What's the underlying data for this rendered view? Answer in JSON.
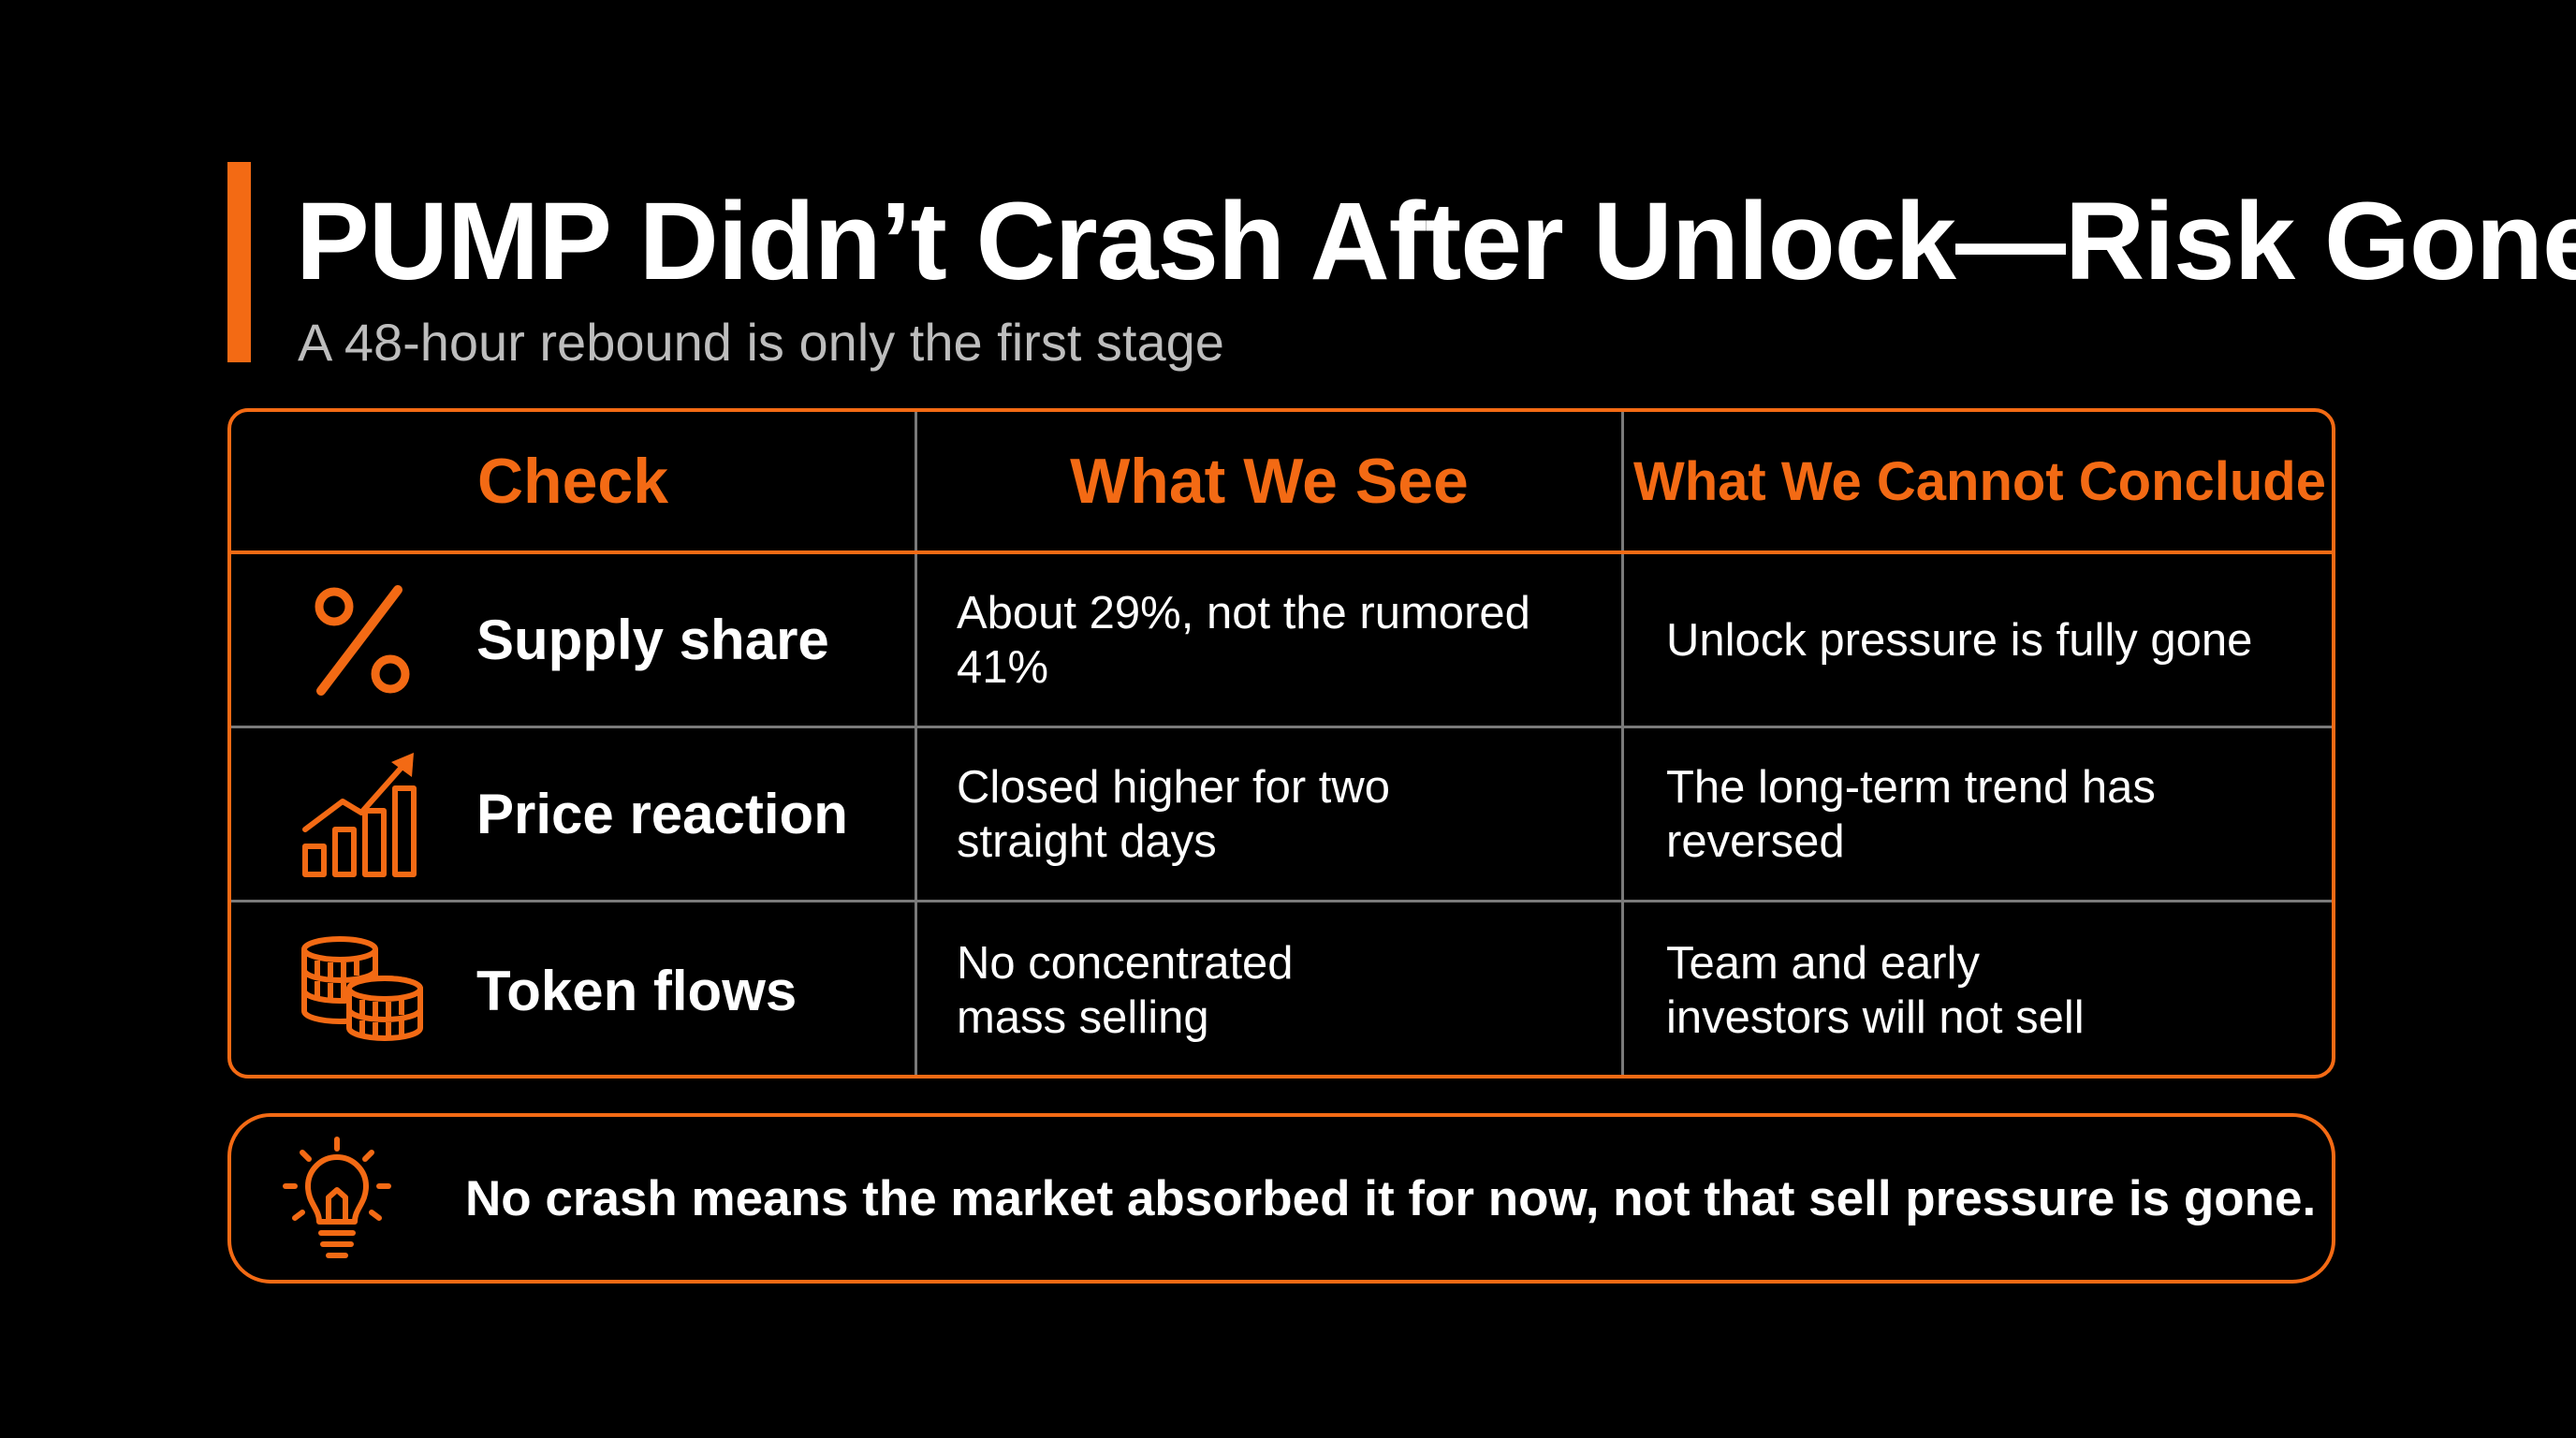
{
  "title": "PUMP Didn’t Crash After Unlock—Risk Gone?",
  "subtitle": "A 48-hour rebound is only the first stage",
  "accent_color": "#f36a14",
  "table": {
    "headers": {
      "check": "Check",
      "see": "What We See",
      "conclude": "What We Cannot Conclude"
    },
    "rows": [
      {
        "icon": "percent-icon",
        "check": "Supply share",
        "see": "About 29%, not the rumored 41%",
        "conclude": "Unlock pressure is fully gone"
      },
      {
        "icon": "growth-chart-icon",
        "check": "Price reaction",
        "see": "Closed higher for two\nstraight days",
        "conclude": "The long-term trend has reversed"
      },
      {
        "icon": "coins-icon",
        "check": "Token flows",
        "see": "No concentrated\nmass selling",
        "conclude": "Team and early\ninvestors will not sell"
      }
    ]
  },
  "callout": {
    "icon": "lightbulb-icon",
    "text": "No crash means the market absorbed it for now, not that sell pressure is gone."
  }
}
